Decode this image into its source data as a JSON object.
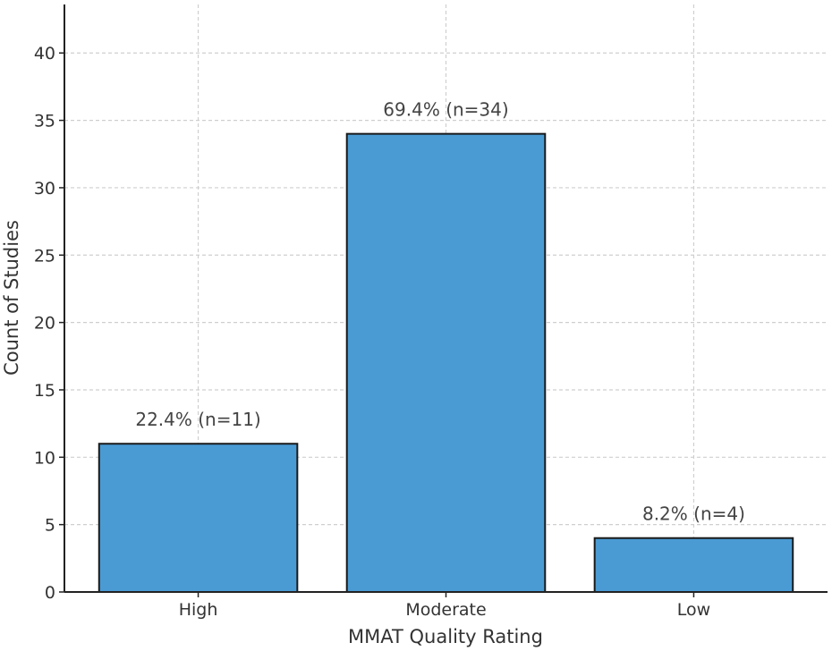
{
  "chart_data": {
    "type": "bar",
    "title": "",
    "xlabel": "MMAT Quality Rating",
    "ylabel": "Count of Studies",
    "categories": [
      "High",
      "Moderate",
      "Low"
    ],
    "values": [
      11,
      34,
      4
    ],
    "data_labels": [
      "22.4% (n=11)",
      "69.4% (n=34)",
      "8.2% (n=4)"
    ],
    "ylim": [
      0,
      43.6
    ],
    "yticks": [
      0,
      5,
      10,
      15,
      20,
      25,
      30,
      35,
      40
    ],
    "grid": true,
    "bar_color": "#4a9bd4",
    "edge_color": "#1a1a1a"
  }
}
